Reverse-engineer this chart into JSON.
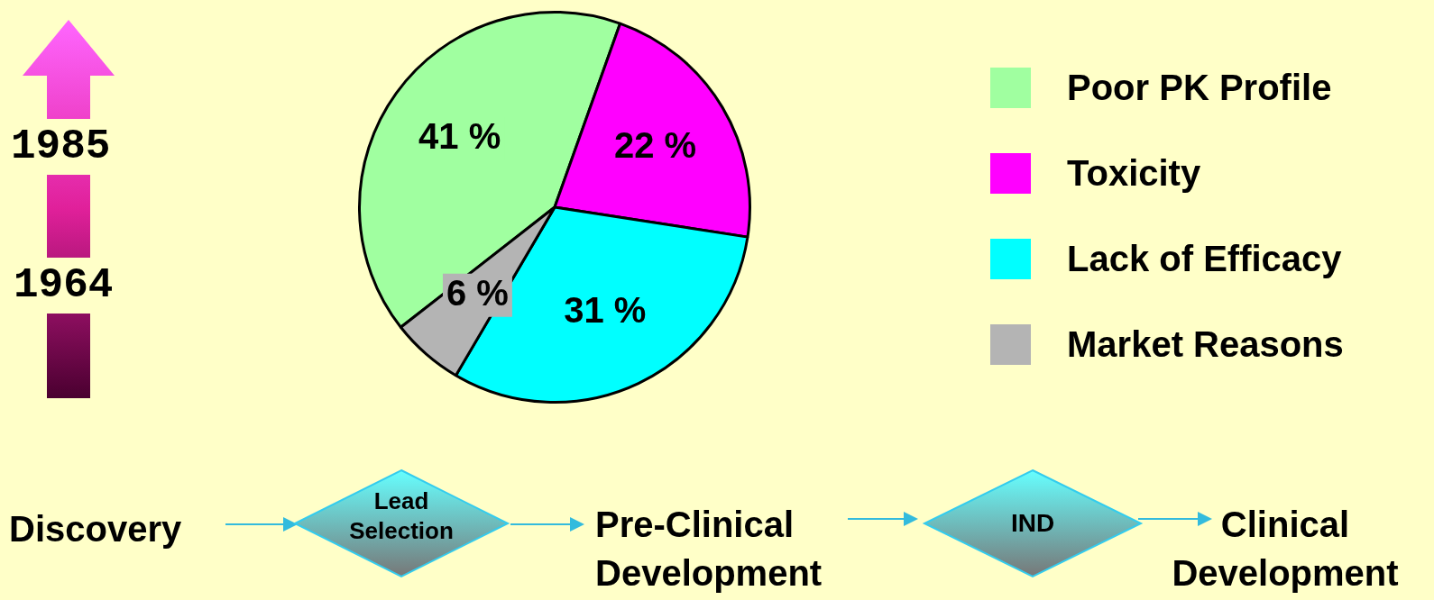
{
  "chart_data": {
    "type": "pie",
    "categories": [
      "Poor PK Profile",
      "Toxicity",
      "Lack of Efficacy",
      "Market Reasons"
    ],
    "values": [
      41,
      22,
      31,
      6
    ],
    "colors": [
      "#a0ffa0",
      "#ff00ff",
      "#00ffff",
      "#b4b4b4"
    ],
    "value_labels": [
      "41 %",
      "22 %",
      "31 %",
      "6 %"
    ],
    "legend": "right",
    "annotations": [
      "1985",
      "1964",
      "Discovery",
      "Lead Selection",
      "Pre-Clinical Development",
      "IND",
      "Clinical Development"
    ]
  }
}
